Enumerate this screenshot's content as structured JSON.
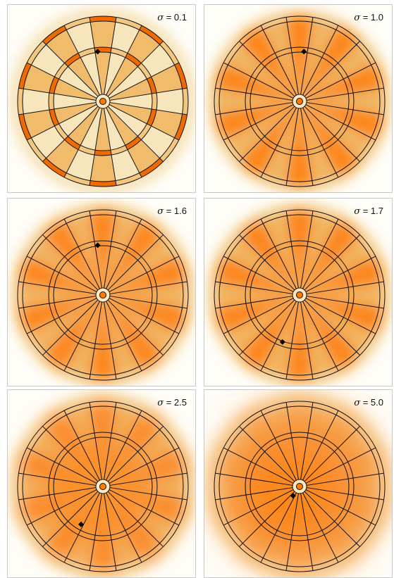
{
  "chart_data": [
    {
      "type": "heatmap",
      "sigma_symbol": "σ",
      "equals": "=",
      "sigma": "0.1"
    },
    {
      "type": "heatmap",
      "sigma_symbol": "σ",
      "equals": "=",
      "sigma": "1.0"
    },
    {
      "type": "heatmap",
      "sigma_symbol": "σ",
      "equals": "=",
      "sigma": "1.6"
    },
    {
      "type": "heatmap",
      "sigma_symbol": "σ",
      "equals": "=",
      "sigma": "1.7"
    },
    {
      "type": "heatmap",
      "sigma_symbol": "σ",
      "equals": "=",
      "sigma": "2.5"
    },
    {
      "type": "heatmap",
      "sigma_symbol": "σ",
      "equals": "=",
      "sigma": "5.0"
    }
  ],
  "colors": {
    "background": "#fffdf8",
    "light": "#f6e3b8",
    "mid": "#f0b25c",
    "hot": "#ff7a00",
    "deep": "#f06a00",
    "lines": "#111111",
    "marker": "#000000"
  }
}
